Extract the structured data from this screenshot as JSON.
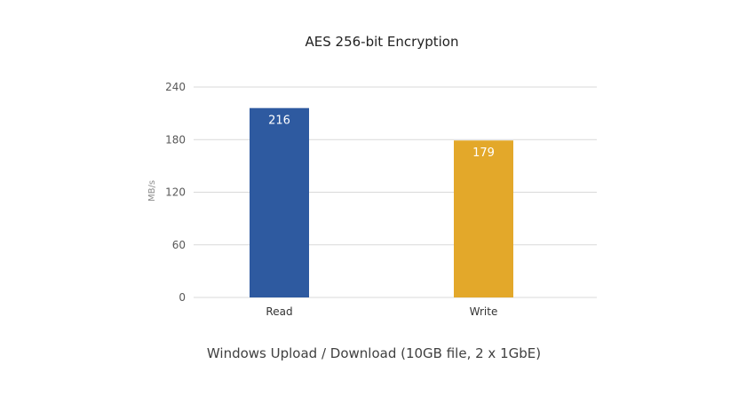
{
  "chart_data": {
    "type": "bar",
    "title": "AES 256-bit Encryption",
    "categories": [
      "Read",
      "Write"
    ],
    "values": [
      216,
      179
    ],
    "data_labels": [
      "216",
      "179"
    ],
    "bar_colors": [
      "#2e5aa0",
      "#e3a82a"
    ],
    "ylabel": "MB/s",
    "xlabel": "Windows Upload / Download (10GB file, 2 x 1GbE)",
    "ylim": [
      0,
      240
    ],
    "yticks": [
      0,
      60,
      120,
      180,
      240
    ],
    "ytick_labels": [
      "0",
      "60",
      "120",
      "180",
      "240"
    ],
    "grid": true,
    "legend": "none"
  }
}
